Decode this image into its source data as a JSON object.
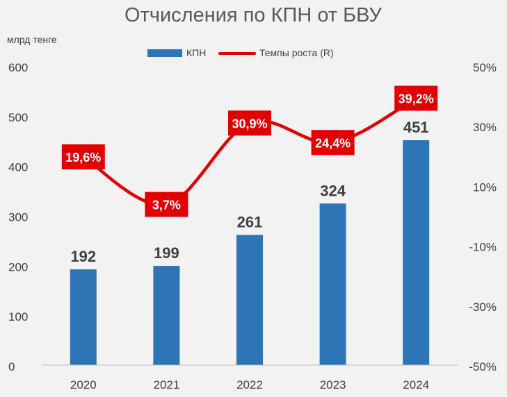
{
  "chart_data": {
    "type": "bar+line",
    "title": "Отчисления по КПН от БВУ",
    "y_unit": "млрд тенге",
    "categories": [
      "2020",
      "2021",
      "2022",
      "2023",
      "2024"
    ],
    "series": [
      {
        "name": "КПН",
        "type": "bar",
        "axis": "left",
        "color": "#2e75b6",
        "values": [
          192,
          199,
          261,
          324,
          451
        ],
        "labels": [
          "192",
          "199",
          "261",
          "324",
          "451"
        ]
      },
      {
        "name": "Темпы роста (R)",
        "type": "line",
        "axis": "right",
        "color": "#e00000",
        "values": [
          19.6,
          3.7,
          30.9,
          24.4,
          39.2
        ],
        "labels": [
          "19,6%",
          "3,7%",
          "30,9%",
          "24,4%",
          "39,2%"
        ]
      }
    ],
    "y_left": {
      "min": 0,
      "max": 600,
      "ticks": [
        "0",
        "100",
        "200",
        "300",
        "400",
        "500",
        "600"
      ]
    },
    "y_right": {
      "min": -50,
      "max": 50,
      "ticks": [
        "-50%",
        "-30%",
        "-10%",
        "10%",
        "30%",
        "50%"
      ]
    },
    "legend_position": "top-center",
    "grid": false
  }
}
